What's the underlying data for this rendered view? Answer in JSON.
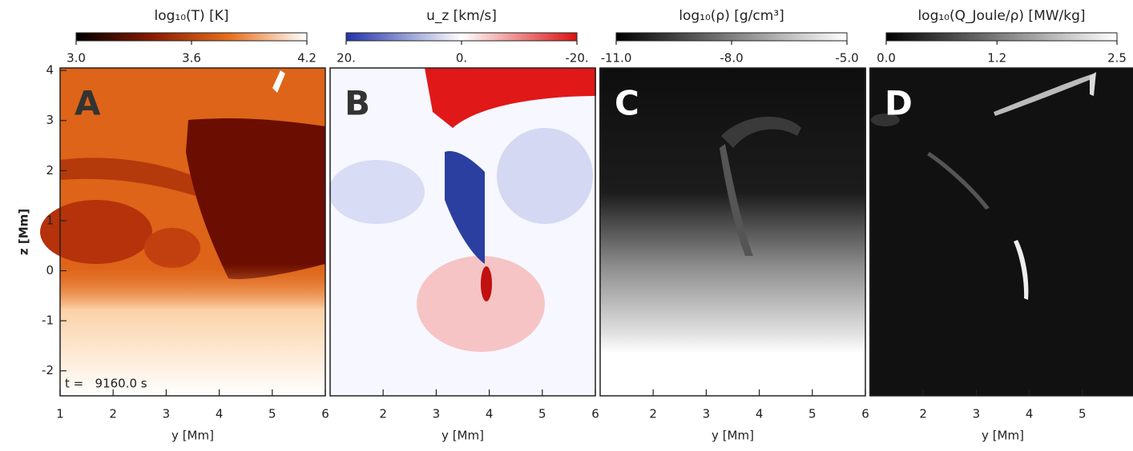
{
  "chart_data": [
    {
      "type": "heatmap",
      "panel_label": "A",
      "colorbar_title": "log₁₀(T) [K]",
      "clim": [
        3.0,
        4.2
      ],
      "cticks": [
        {
          "value": 3.0,
          "label": "3.0"
        },
        {
          "value": 3.6,
          "label": "3.6"
        },
        {
          "value": 4.2,
          "label": "4.2"
        }
      ],
      "colormap": [
        "#000000",
        "#8b1a00",
        "#e8701e",
        "#ffffff"
      ],
      "xlabel": "y [Mm]",
      "ylabel": "z [Mm]",
      "xlim": [
        1,
        6
      ],
      "xticks": [
        1,
        2,
        3,
        4,
        5,
        6
      ],
      "ylim": [
        -2.5,
        4.05
      ],
      "yticks": [
        -2,
        -1,
        0,
        1,
        2,
        3,
        4
      ],
      "annotation": "t =   9160.0 s"
    },
    {
      "type": "heatmap",
      "panel_label": "B",
      "colorbar_title": "u_z [km/s]",
      "clim": [
        20,
        -20
      ],
      "cticks": [
        {
          "value": 20,
          "label": "20."
        },
        {
          "value": 0,
          "label": "0."
        },
        {
          "value": -20,
          "label": "-20."
        }
      ],
      "colormap": [
        "#2233aa",
        "#ffffff",
        "#dd1111"
      ],
      "xlabel": "y [Mm]",
      "xlim": [
        1,
        6
      ],
      "xticks": [
        2,
        3,
        4,
        5,
        6
      ]
    },
    {
      "type": "heatmap",
      "panel_label": "C",
      "colorbar_title": "log₁₀(ρ) [g/cm³]",
      "clim": [
        -11.0,
        -5.0
      ],
      "cticks": [
        {
          "value": -11.0,
          "label": "-11.0"
        },
        {
          "value": -8.0,
          "label": "-8.0"
        },
        {
          "value": -5.0,
          "label": "-5.0"
        }
      ],
      "colormap": [
        "#000000",
        "#ffffff"
      ],
      "xlabel": "y [Mm]",
      "xlim": [
        1,
        6
      ],
      "xticks": [
        2,
        3,
        4,
        5,
        6
      ]
    },
    {
      "type": "heatmap",
      "panel_label": "D",
      "colorbar_title": "log₁₀(Q_Joule/ρ) [MW/kg]",
      "clim": [
        0.0,
        2.5
      ],
      "cticks": [
        {
          "value": 0.0,
          "label": "0.0"
        },
        {
          "value": 1.2,
          "label": "1.2"
        },
        {
          "value": 2.5,
          "label": "2.5"
        }
      ],
      "colormap": [
        "#000000",
        "#ffffff"
      ],
      "xlabel": "y [Mm]",
      "xlim": [
        1,
        6
      ],
      "xticks": [
        2,
        3,
        4,
        5
      ]
    }
  ]
}
